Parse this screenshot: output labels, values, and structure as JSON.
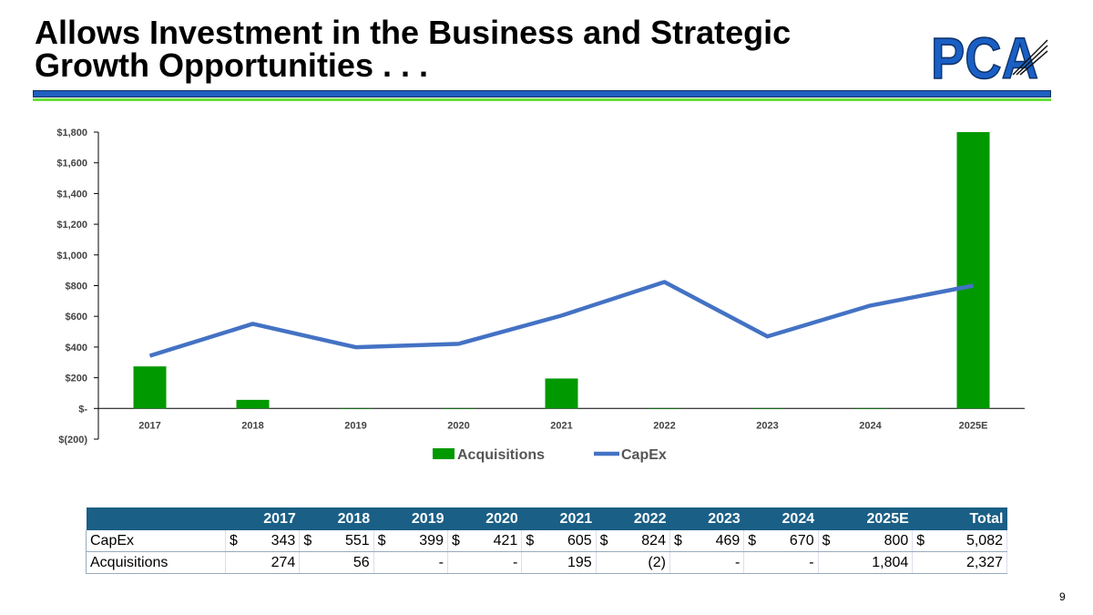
{
  "title_line1": "Allows Investment in the Business and Strategic",
  "title_line2": "Growth Opportunities . . .",
  "logo_text": "PCA",
  "page_number": "9",
  "colors": {
    "acquisitions": "#009900",
    "capex": "#4472c4",
    "table_header": "#1a5f86",
    "title_rule": "#1f5fbf",
    "accent_rule": "#66e03a"
  },
  "chart_data": {
    "type": "bar+line",
    "categories": [
      "2017",
      "2018",
      "2019",
      "2020",
      "2021",
      "2022",
      "2023",
      "2024",
      "2025E"
    ],
    "series": [
      {
        "name": "Acquisitions",
        "type": "bar",
        "values": [
          274,
          56,
          0,
          0,
          195,
          -2,
          0,
          0,
          1804
        ]
      },
      {
        "name": "CapEx",
        "type": "line",
        "values": [
          343,
          551,
          399,
          421,
          605,
          824,
          469,
          670,
          800
        ]
      }
    ],
    "ylim": [
      -200,
      1800
    ],
    "yticks": [
      "$(200)",
      "$-",
      "$200",
      "$400",
      "$600",
      "$800",
      "$1,000",
      "$1,200",
      "$1,400",
      "$1,600",
      "$1,800"
    ],
    "legend": "bottom",
    "grid": false
  },
  "table": {
    "headers": [
      "",
      "2017",
      "2018",
      "2019",
      "2020",
      "2021",
      "2022",
      "2023",
      "2024",
      "2025E",
      "Total"
    ],
    "rows": [
      {
        "label": "CapEx",
        "currency": "$",
        "cells": [
          "343",
          "551",
          "399",
          "421",
          "605",
          "824",
          "469",
          "670",
          "800",
          "5,082"
        ]
      },
      {
        "label": "Acquisitions",
        "currency": "",
        "cells": [
          "274",
          "56",
          "-",
          "-",
          "195",
          "(2)",
          "-",
          "-",
          "1,804",
          "2,327"
        ]
      }
    ]
  }
}
